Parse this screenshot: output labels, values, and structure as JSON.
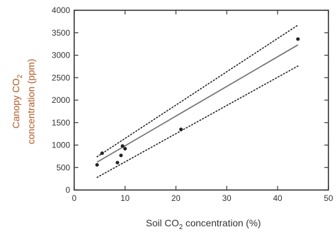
{
  "chart_data": {
    "type": "scatter",
    "xlabel_parts": [
      "Soil CO",
      "2",
      " concentration (%)"
    ],
    "ylabel_line1_parts": [
      "Canopy CO",
      "2"
    ],
    "ylabel_line2": "concentration (ppm)",
    "xlim": [
      0,
      50
    ],
    "ylim": [
      0,
      4000
    ],
    "x_ticks": [
      0,
      10,
      20,
      30,
      40,
      50
    ],
    "y_ticks": [
      0,
      500,
      1000,
      1500,
      2000,
      2500,
      3000,
      3500,
      4000
    ],
    "grid": false,
    "points": [
      {
        "x": 4.5,
        "y": 560
      },
      {
        "x": 5.5,
        "y": 820
      },
      {
        "x": 8.5,
        "y": 610
      },
      {
        "x": 9.2,
        "y": 770
      },
      {
        "x": 9.5,
        "y": 980
      },
      {
        "x": 10.0,
        "y": 920
      },
      {
        "x": 21.0,
        "y": 1350
      },
      {
        "x": 44.0,
        "y": 3360
      }
    ],
    "fit_line": {
      "x": [
        4.5,
        44.0
      ],
      "y": [
        620,
        3230
      ]
    },
    "confidence_upper": {
      "x": [
        4.5,
        44.0
      ],
      "y": [
        740,
        3670
      ]
    },
    "confidence_lower": {
      "x": [
        4.5,
        44.0
      ],
      "y": [
        280,
        2760
      ]
    },
    "colors": {
      "axis": "#333333",
      "ylabel": "#b05a24",
      "points": "#222222",
      "fit": "#777777",
      "band": "#222222"
    }
  }
}
